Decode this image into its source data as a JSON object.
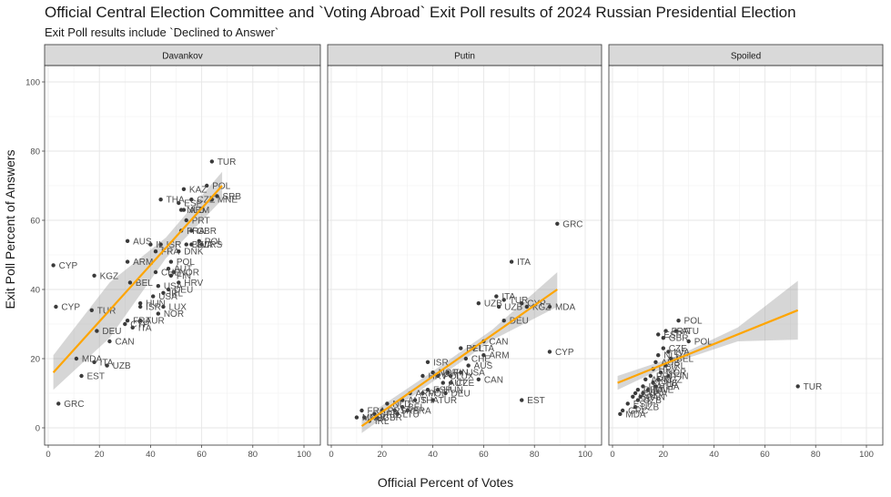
{
  "title": "Official Central Election Committee and `Voting Abroad` Exit Poll results of 2024 Russian Presidential Election",
  "subtitle": "Exit Poll results include `Declined to Answer`",
  "xlabel": "Official Percent of Votes",
  "ylabel": "Exit Poll Percent of Answers",
  "chart_data": [
    {
      "type": "scatter",
      "panel": "Davankov",
      "xlim": [
        0,
        100
      ],
      "ylim": [
        0,
        100
      ],
      "xticks": [
        0,
        20,
        40,
        60,
        80,
        100
      ],
      "yticks": [
        0,
        20,
        40,
        60,
        80,
        100
      ],
      "grid": true,
      "trend": {
        "type": "linear fit with confidence band",
        "color": "#FFA500",
        "x": [
          2,
          68
        ],
        "y": [
          16,
          70
        ],
        "band_half_width": [
          5,
          8,
          3,
          4
        ]
      },
      "points": [
        {
          "x": 64,
          "y": 77,
          "label": "TUR"
        },
        {
          "x": 53,
          "y": 69,
          "label": "KAZ"
        },
        {
          "x": 62,
          "y": 70,
          "label": "POL"
        },
        {
          "x": 66,
          "y": 67,
          "label": "SRB"
        },
        {
          "x": 44,
          "y": 66,
          "label": "THA"
        },
        {
          "x": 56,
          "y": 66,
          "label": "CZE"
        },
        {
          "x": 64,
          "y": 66,
          "label": "MNE"
        },
        {
          "x": 51,
          "y": 65,
          "label": "ESP"
        },
        {
          "x": 53,
          "y": 63,
          "label": "ARM"
        },
        {
          "x": 52,
          "y": 63,
          "label": "NLD"
        },
        {
          "x": 54,
          "y": 60,
          "label": "PRT"
        },
        {
          "x": 52,
          "y": 57,
          "label": "FRA"
        },
        {
          "x": 56,
          "y": 57,
          "label": "GBR"
        },
        {
          "x": 59,
          "y": 54,
          "label": "POL"
        },
        {
          "x": 31,
          "y": 54,
          "label": "AUS"
        },
        {
          "x": 40,
          "y": 53,
          "label": "IL"
        },
        {
          "x": 44,
          "y": 53,
          "label": "ISR"
        },
        {
          "x": 54,
          "y": 53,
          "label": "BEL"
        },
        {
          "x": 56,
          "y": 53,
          "label": "LVA"
        },
        {
          "x": 60,
          "y": 53,
          "label": "IRS"
        },
        {
          "x": 42,
          "y": 51,
          "label": "FRA"
        },
        {
          "x": 51,
          "y": 51,
          "label": "DNK"
        },
        {
          "x": 18,
          "y": 44,
          "label": "KGZ"
        },
        {
          "x": 31,
          "y": 48,
          "label": "ARM"
        },
        {
          "x": 48,
          "y": 48,
          "label": "POL"
        },
        {
          "x": 47,
          "y": 46,
          "label": "AUT"
        },
        {
          "x": 49,
          "y": 45,
          "label": "NOR"
        },
        {
          "x": 42,
          "y": 45,
          "label": "CHE"
        },
        {
          "x": 48,
          "y": 44,
          "label": "FIN"
        },
        {
          "x": 32,
          "y": 42,
          "label": "BEL"
        },
        {
          "x": 51,
          "y": 42,
          "label": "HRV"
        },
        {
          "x": 43,
          "y": 41,
          "label": "USA"
        },
        {
          "x": 47,
          "y": 40,
          "label": "DEU"
        },
        {
          "x": 45,
          "y": 39,
          "label": "IRL"
        },
        {
          "x": 41,
          "y": 38,
          "label": "USA"
        },
        {
          "x": 36,
          "y": 36,
          "label": "HUN"
        },
        {
          "x": 36,
          "y": 35,
          "label": "ISR"
        },
        {
          "x": 45,
          "y": 35,
          "label": "LUX"
        },
        {
          "x": 43,
          "y": 33,
          "label": "NOR"
        },
        {
          "x": 2,
          "y": 47,
          "label": "CYP"
        },
        {
          "x": 3,
          "y": 35,
          "label": "CYP"
        },
        {
          "x": 17,
          "y": 34,
          "label": "TUR"
        },
        {
          "x": 31,
          "y": 31,
          "label": "FRA"
        },
        {
          "x": 36,
          "y": 31,
          "label": "TUR"
        },
        {
          "x": 30,
          "y": 30,
          "label": "CYP"
        },
        {
          "x": 33,
          "y": 29,
          "label": "ITA"
        },
        {
          "x": 19,
          "y": 28,
          "label": "DEU"
        },
        {
          "x": 24,
          "y": 25,
          "label": "CAN"
        },
        {
          "x": 11,
          "y": 20,
          "label": "MDA"
        },
        {
          "x": 18,
          "y": 19,
          "label": "ITA"
        },
        {
          "x": 23,
          "y": 18,
          "label": "UZB"
        },
        {
          "x": 13,
          "y": 15,
          "label": "EST"
        },
        {
          "x": 4,
          "y": 7,
          "label": "GRC"
        }
      ]
    },
    {
      "type": "scatter",
      "panel": "Putin",
      "xlim": [
        0,
        100
      ],
      "ylim": [
        0,
        100
      ],
      "xticks": [
        0,
        20,
        40,
        60,
        80,
        100
      ],
      "yticks": [
        0,
        20,
        40,
        60,
        80,
        100
      ],
      "grid": true,
      "trend": {
        "type": "linear fit with confidence band",
        "color": "#FFA500",
        "x": [
          12,
          89
        ],
        "y": [
          0.5,
          40
        ],
        "band_half_width": [
          2,
          1.5,
          1.5,
          5
        ]
      },
      "points": [
        {
          "x": 89,
          "y": 59,
          "label": "GRC"
        },
        {
          "x": 71,
          "y": 48,
          "label": "ITA"
        },
        {
          "x": 65,
          "y": 38,
          "label": "ITA"
        },
        {
          "x": 68,
          "y": 37,
          "label": "TUR"
        },
        {
          "x": 75,
          "y": 36,
          "label": "CYP"
        },
        {
          "x": 58,
          "y": 36,
          "label": "UZB"
        },
        {
          "x": 66,
          "y": 35,
          "label": "UZB"
        },
        {
          "x": 77,
          "y": 35,
          "label": "KGZ"
        },
        {
          "x": 86,
          "y": 35,
          "label": "MDA"
        },
        {
          "x": 68,
          "y": 31,
          "label": "DEU"
        },
        {
          "x": 60,
          "y": 25,
          "label": "CAN"
        },
        {
          "x": 51,
          "y": 23,
          "label": "BEL"
        },
        {
          "x": 56,
          "y": 23,
          "label": "LTA"
        },
        {
          "x": 60,
          "y": 21,
          "label": "ARM"
        },
        {
          "x": 86,
          "y": 22,
          "label": "CYP"
        },
        {
          "x": 53,
          "y": 20,
          "label": "CHE"
        },
        {
          "x": 38,
          "y": 19,
          "label": "ISR"
        },
        {
          "x": 54,
          "y": 18,
          "label": "AUS"
        },
        {
          "x": 40,
          "y": 16,
          "label": "NOR"
        },
        {
          "x": 46,
          "y": 16,
          "label": "FIN"
        },
        {
          "x": 51,
          "y": 16,
          "label": "USA"
        },
        {
          "x": 36,
          "y": 15,
          "label": "HRV"
        },
        {
          "x": 42,
          "y": 15,
          "label": "POL"
        },
        {
          "x": 47,
          "y": 15,
          "label": "LUX"
        },
        {
          "x": 58,
          "y": 14,
          "label": "CAN"
        },
        {
          "x": 44,
          "y": 13,
          "label": "AUT"
        },
        {
          "x": 47,
          "y": 13,
          "label": "CZE"
        },
        {
          "x": 38,
          "y": 11,
          "label": "ESP"
        },
        {
          "x": 42,
          "y": 11,
          "label": "HUN"
        },
        {
          "x": 45,
          "y": 10,
          "label": "DEU"
        },
        {
          "x": 36,
          "y": 10,
          "label": "POL"
        },
        {
          "x": 31,
          "y": 10,
          "label": "ARM"
        },
        {
          "x": 75,
          "y": 8,
          "label": "EST"
        },
        {
          "x": 28,
          "y": 8,
          "label": "AUS"
        },
        {
          "x": 33,
          "y": 8,
          "label": "THA"
        },
        {
          "x": 40,
          "y": 8,
          "label": "TUR"
        },
        {
          "x": 22,
          "y": 7,
          "label": "NLD"
        },
        {
          "x": 28,
          "y": 6,
          "label": "BEL"
        },
        {
          "x": 30,
          "y": 5,
          "label": "FRA"
        },
        {
          "x": 20,
          "y": 5,
          "label": "PRT"
        },
        {
          "x": 25,
          "y": 5,
          "label": "SRB"
        },
        {
          "x": 12,
          "y": 5,
          "label": "FRA"
        },
        {
          "x": 17,
          "y": 4,
          "label": "SRB"
        },
        {
          "x": 26,
          "y": 4,
          "label": "LTU"
        },
        {
          "x": 10,
          "y": 3,
          "label": "MNE"
        },
        {
          "x": 13,
          "y": 3,
          "label": "POL"
        },
        {
          "x": 15,
          "y": 2,
          "label": "IRL"
        },
        {
          "x": 18,
          "y": 3,
          "label": "GBR"
        }
      ]
    },
    {
      "type": "scatter",
      "panel": "Spoiled",
      "xlim": [
        0,
        100
      ],
      "ylim": [
        0,
        100
      ],
      "xticks": [
        0,
        20,
        40,
        60,
        80,
        100
      ],
      "yticks": [
        0,
        20,
        40,
        60,
        80,
        100
      ],
      "grid": true,
      "trend": {
        "type": "linear fit with confidence band",
        "color": "#FFA500",
        "x": [
          2,
          73
        ],
        "y": [
          13,
          34
        ],
        "band_half_width": [
          2,
          0.8,
          2,
          8.5
        ]
      },
      "points": [
        {
          "x": 73,
          "y": 12,
          "label": "TUR"
        },
        {
          "x": 26,
          "y": 31,
          "label": "POL"
        },
        {
          "x": 21,
          "y": 28,
          "label": "FRA"
        },
        {
          "x": 25,
          "y": 28,
          "label": "ATU"
        },
        {
          "x": 18,
          "y": 27,
          "label": "ESP"
        },
        {
          "x": 20,
          "y": 26,
          "label": "GBR"
        },
        {
          "x": 30,
          "y": 25,
          "label": "POL"
        },
        {
          "x": 20,
          "y": 23,
          "label": "CZE"
        },
        {
          "x": 22,
          "y": 22,
          "label": "LVA"
        },
        {
          "x": 18,
          "y": 21,
          "label": "NLD"
        },
        {
          "x": 23,
          "y": 20,
          "label": "BEL"
        },
        {
          "x": 17,
          "y": 19,
          "label": "AUS"
        },
        {
          "x": 21,
          "y": 18,
          "label": "IRL"
        },
        {
          "x": 16,
          "y": 17,
          "label": "HRV"
        },
        {
          "x": 19,
          "y": 16,
          "label": "NOR"
        },
        {
          "x": 22,
          "y": 15,
          "label": "FIN"
        },
        {
          "x": 15,
          "y": 15,
          "label": "PRT"
        },
        {
          "x": 18,
          "y": 14,
          "label": "KGZ"
        },
        {
          "x": 13,
          "y": 14,
          "label": "ARM"
        },
        {
          "x": 16,
          "y": 13,
          "label": "CHE"
        },
        {
          "x": 12,
          "y": 12,
          "label": "ITA"
        },
        {
          "x": 17,
          "y": 12,
          "label": "THA"
        },
        {
          "x": 10,
          "y": 11,
          "label": "DEU"
        },
        {
          "x": 14,
          "y": 11,
          "label": "MNE"
        },
        {
          "x": 9,
          "y": 10,
          "label": "CYP"
        },
        {
          "x": 12,
          "y": 10,
          "label": "USA"
        },
        {
          "x": 8,
          "y": 9,
          "label": "ISR"
        },
        {
          "x": 11,
          "y": 9,
          "label": "CAN"
        },
        {
          "x": 10,
          "y": 8,
          "label": "UZB"
        },
        {
          "x": 6,
          "y": 7,
          "label": "EST"
        },
        {
          "x": 9,
          "y": 6,
          "label": "UZB"
        },
        {
          "x": 4,
          "y": 5,
          "label": "GRC"
        },
        {
          "x": 3,
          "y": 4,
          "label": "MDA"
        }
      ]
    }
  ]
}
